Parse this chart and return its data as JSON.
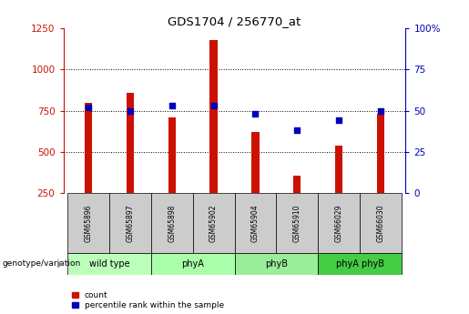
{
  "title": "GDS1704 / 256770_at",
  "samples": [
    "GSM65896",
    "GSM65897",
    "GSM65898",
    "GSM65902",
    "GSM65904",
    "GSM65910",
    "GSM66029",
    "GSM66030"
  ],
  "counts": [
    800,
    860,
    710,
    1180,
    620,
    355,
    540,
    730
  ],
  "percentile_ranks": [
    52,
    50,
    53,
    53,
    48,
    38,
    44,
    50
  ],
  "groups": [
    {
      "label": "wild type",
      "indices": [
        0,
        1
      ],
      "color": "#bbffbb"
    },
    {
      "label": "phyA",
      "indices": [
        2,
        3
      ],
      "color": "#aaffaa"
    },
    {
      "label": "phyB",
      "indices": [
        4,
        5
      ],
      "color": "#99ee99"
    },
    {
      "label": "phyA phyB",
      "indices": [
        6,
        7
      ],
      "color": "#44cc44"
    }
  ],
  "bar_color": "#cc1100",
  "dot_color": "#0000bb",
  "ylim_left": [
    250,
    1250
  ],
  "ylim_right": [
    0,
    100
  ],
  "yticks_left": [
    250,
    500,
    750,
    1000,
    1250
  ],
  "yticks_right": [
    0,
    25,
    50,
    75,
    100
  ],
  "bg_color": "#ffffff",
  "label_count": "count",
  "label_pct": "percentile rank within the sample",
  "genotype_label": "genotype/variation"
}
